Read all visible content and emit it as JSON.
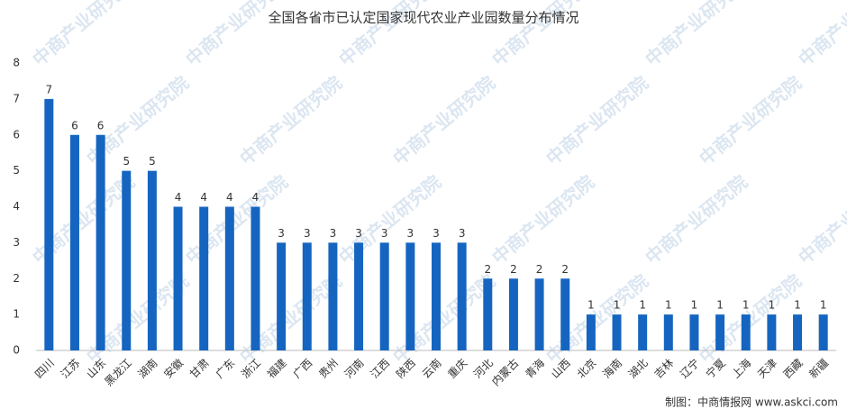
{
  "chart_data": {
    "type": "bar",
    "title": "全国各省市已认定国家现代农业产业园数量分布情况",
    "source": "制图：中商情报网 www.askci.com",
    "watermark": "中商产业研究院",
    "categories": [
      "四川",
      "江苏",
      "山东",
      "黑龙江",
      "湖南",
      "安徽",
      "甘肃",
      "广东",
      "浙江",
      "福建",
      "广西",
      "贵州",
      "河南",
      "江西",
      "陕西",
      "云南",
      "重庆",
      "河北",
      "内蒙古",
      "青海",
      "山西",
      "北京",
      "海南",
      "湖北",
      "吉林",
      "辽宁",
      "宁夏",
      "上海",
      "天津",
      "西藏",
      "新疆"
    ],
    "values": [
      7,
      6,
      6,
      5,
      5,
      4,
      4,
      4,
      4,
      3,
      3,
      3,
      3,
      3,
      3,
      3,
      3,
      2,
      2,
      2,
      2,
      1,
      1,
      1,
      1,
      1,
      1,
      1,
      1,
      1,
      1
    ],
    "color": "#1565c0",
    "ylim": [
      0,
      8
    ],
    "yticks": [
      0,
      1,
      2,
      3,
      4,
      5,
      6,
      7,
      8
    ],
    "grid": false
  }
}
